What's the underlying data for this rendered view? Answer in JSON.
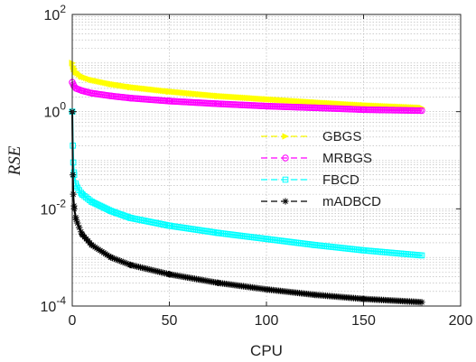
{
  "chart_data": {
    "type": "line",
    "title": "",
    "xlabel": "CPU",
    "ylabel": "RSE",
    "xlim": [
      0,
      200
    ],
    "ylim": [
      0.0001,
      100
    ],
    "yscale": "log",
    "grid": true,
    "legend_position": "right-middle",
    "x_ticks": [
      "0",
      "50",
      "100",
      "150",
      "200"
    ],
    "y_ticks": [
      {
        "base": "10",
        "exp": "2"
      },
      {
        "base": "10",
        "exp": "0"
      },
      {
        "base": "10",
        "exp": "-2"
      },
      {
        "base": "10",
        "exp": "-4"
      }
    ],
    "series": [
      {
        "name": "GBGS",
        "color": "#ffff00",
        "marker": "triangle-right",
        "x": [
          0,
          0.5,
          1,
          2,
          5,
          10,
          20,
          30,
          50,
          75,
          100,
          125,
          150,
          180
        ],
        "y": [
          10.0,
          8.5,
          7.5,
          6.5,
          5.3,
          4.5,
          3.7,
          3.2,
          2.6,
          2.1,
          1.8,
          1.55,
          1.35,
          1.2
        ]
      },
      {
        "name": "MRBGS",
        "color": "#ff00ff",
        "marker": "circle",
        "x": [
          0,
          0.5,
          1,
          2,
          5,
          10,
          20,
          30,
          50,
          75,
          100,
          125,
          150,
          180
        ],
        "y": [
          4.0,
          3.6,
          3.3,
          3.0,
          2.7,
          2.4,
          2.1,
          1.9,
          1.65,
          1.45,
          1.3,
          1.2,
          1.1,
          1.05
        ]
      },
      {
        "name": "FBCD",
        "color": "#00ffff",
        "marker": "square",
        "x": [
          0,
          0.3,
          0.5,
          1,
          2,
          5,
          10,
          20,
          30,
          50,
          75,
          100,
          125,
          150,
          180
        ],
        "y": [
          1.0,
          0.2,
          0.09,
          0.05,
          0.03,
          0.02,
          0.014,
          0.009,
          0.0065,
          0.0045,
          0.0032,
          0.0024,
          0.0018,
          0.0014,
          0.0011
        ]
      },
      {
        "name": "mADBCD",
        "color": "#000000",
        "marker": "asterisk",
        "x": [
          0,
          0.3,
          0.5,
          1,
          2,
          5,
          10,
          20,
          30,
          50,
          75,
          100,
          125,
          150,
          180
        ],
        "y": [
          1.0,
          0.05,
          0.02,
          0.01,
          0.006,
          0.003,
          0.0018,
          0.001,
          0.0007,
          0.00045,
          0.0003,
          0.00022,
          0.00017,
          0.00014,
          0.00012
        ]
      }
    ]
  }
}
